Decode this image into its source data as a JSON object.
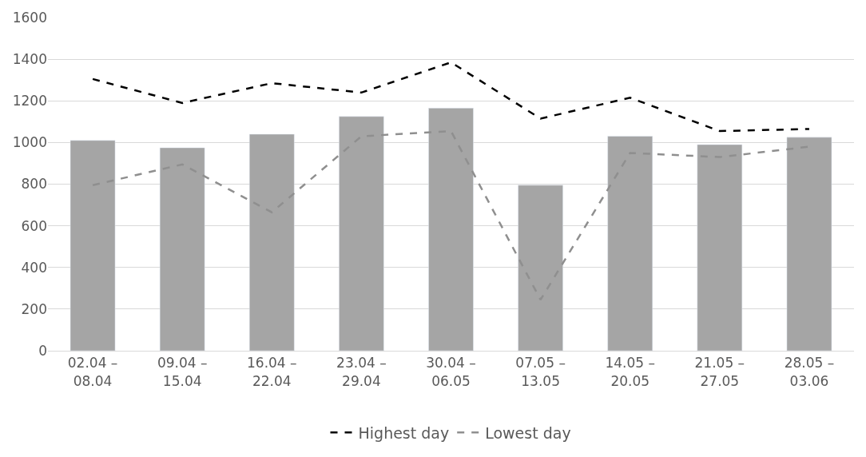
{
  "chart_data": {
    "type": "bar",
    "categories": [
      "02.04 –\n08.04",
      "09.04 –\n15.04",
      "16.04 –\n22.04",
      "23.04 –\n29.04",
      "30.04 –\n06.05",
      "07.05 –\n13.05",
      "14.05 –\n20.05",
      "21.05 –\n27.05",
      "28.05 –\n03.06"
    ],
    "series": [
      {
        "color": "#a5a5a5",
        "values": [
          1010,
          975,
          1040,
          1125,
          1165,
          795,
          1030,
          990,
          1025
        ]
      },
      {
        "type": "line",
        "name": "Highest day",
        "color": "#000000",
        "line_style": "dashed",
        "values": [
          1305,
          1190,
          1285,
          1240,
          1385,
          1115,
          1215,
          1055,
          1065
        ]
      },
      {
        "type": "line",
        "name": "Lowest day",
        "color": "#8f8f8f",
        "line_style": "dashed",
        "values": [
          795,
          895,
          665,
          1030,
          1055,
          245,
          950,
          930,
          980
        ]
      }
    ],
    "ylim": [
      0,
      1600
    ],
    "yticks": [
      0,
      200,
      400,
      600,
      800,
      1000,
      1200,
      1400,
      1600
    ],
    "grid": "y",
    "legend": "bottom"
  }
}
